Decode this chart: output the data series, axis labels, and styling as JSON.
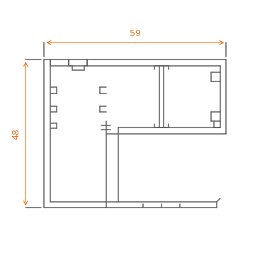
{
  "line_color": "#606060",
  "dim_color": "#E87722",
  "bg_color": "#ffffff",
  "lw": 1.1,
  "dim_lw": 0.8,
  "dim_59": "59",
  "dim_48": "48"
}
